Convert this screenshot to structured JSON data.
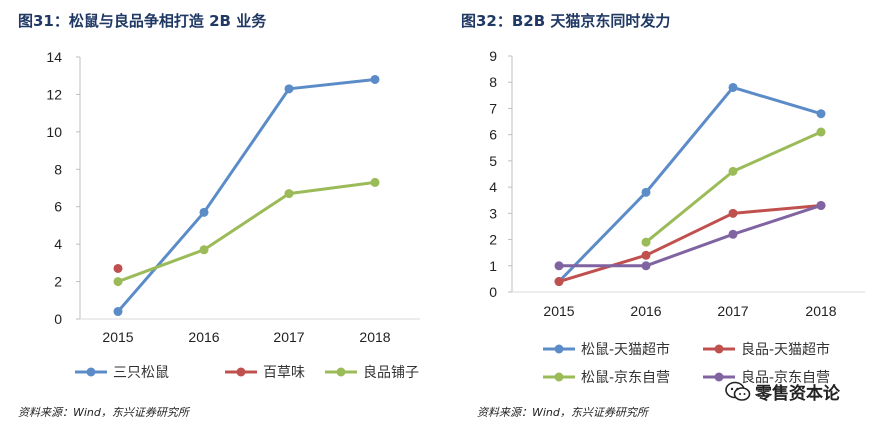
{
  "chart_data": [
    {
      "type": "line",
      "title": "图31：松鼠与良品争相打造 2B 业务",
      "source": "资料来源：Wind，东兴证券研究所",
      "categories": [
        "2015",
        "2016",
        "2017",
        "2018"
      ],
      "yticks": [
        "0",
        "2",
        "4",
        "6",
        "8",
        "10",
        "12",
        "14"
      ],
      "ylim": [
        0,
        14
      ],
      "legend_position": "bottom",
      "series": [
        {
          "name": "三只松鼠",
          "color": "#5b8cc8",
          "values": [
            0.4,
            5.7,
            12.3,
            12.8
          ]
        },
        {
          "name": "百草味",
          "color": "#c0504d",
          "values": [
            2.7,
            null,
            null,
            null
          ]
        },
        {
          "name": "良品铺子",
          "color": "#9bbb59",
          "values": [
            2.0,
            3.7,
            6.7,
            7.3
          ]
        }
      ]
    },
    {
      "type": "line",
      "title": "图32：B2B 天猫京东同时发力",
      "source": "资料来源：Wind，东兴证券研究所",
      "categories": [
        "2015",
        "2016",
        "2017",
        "2018"
      ],
      "yticks": [
        "0",
        "1",
        "2",
        "3",
        "4",
        "5",
        "6",
        "7",
        "8",
        "9"
      ],
      "ylim": [
        0,
        9
      ],
      "legend_position": "bottom",
      "series": [
        {
          "name": "松鼠-天猫超市",
          "color": "#5b8cc8",
          "values": [
            0.4,
            3.8,
            7.8,
            6.8
          ]
        },
        {
          "name": "良品-天猫超市",
          "color": "#c0504d",
          "values": [
            0.4,
            1.4,
            3.0,
            3.3
          ]
        },
        {
          "name": "松鼠-京东自营",
          "color": "#9bbb59",
          "values": [
            null,
            1.9,
            4.6,
            6.1
          ]
        },
        {
          "name": "良品-京东自营",
          "color": "#8064a2",
          "values": [
            1.0,
            1.0,
            2.2,
            3.3
          ]
        }
      ]
    }
  ],
  "watermark": {
    "text": "零售资本论",
    "icon": "wechat-icon"
  }
}
